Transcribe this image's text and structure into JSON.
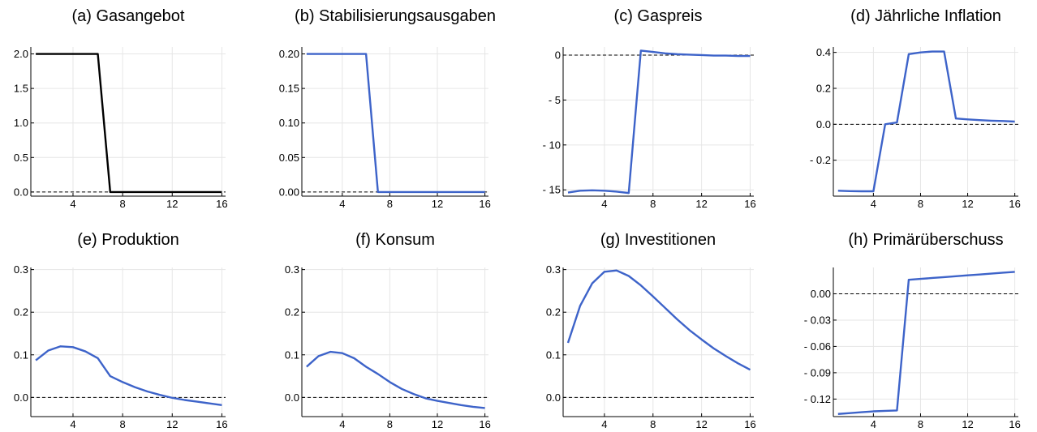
{
  "colors": {
    "series": "#3d63c9",
    "supply": "#000000",
    "grid": "#e6e6e6",
    "axis": "#000000",
    "zero_line": "#000000"
  },
  "chart_data": [
    {
      "type": "line",
      "title": "(a) Gasangebot",
      "x": [
        1,
        2,
        3,
        4,
        5,
        6,
        7,
        8,
        9,
        10,
        11,
        12,
        13,
        14,
        15,
        16
      ],
      "series": [
        {
          "values": [
            2,
            2,
            2,
            2,
            2,
            2,
            0,
            0,
            0,
            0,
            0,
            0,
            0,
            0,
            0,
            0
          ],
          "color": "#000000"
        }
      ],
      "xlim": [
        0.6,
        16.3
      ],
      "ylim": [
        -0.06,
        2.1
      ],
      "xticks": [
        4,
        8,
        12,
        16
      ],
      "xtick_labels": [
        "4",
        "8",
        "12",
        "16"
      ],
      "yticks": [
        0,
        0.5,
        1,
        1.5,
        2
      ],
      "ytick_labels": [
        "0.0",
        "0.5",
        "1.0",
        "1.5",
        "2.0"
      ],
      "grid": true,
      "zero_line": true
    },
    {
      "type": "line",
      "title": "(b) Stabilisierungsausgaben",
      "x": [
        1,
        2,
        3,
        4,
        5,
        6,
        7,
        8,
        9,
        10,
        11,
        12,
        13,
        14,
        15,
        16
      ],
      "series": [
        {
          "values": [
            0.2,
            0.2,
            0.2,
            0.2,
            0.2,
            0.2,
            0,
            0,
            0,
            0,
            0,
            0,
            0,
            0,
            0,
            0
          ],
          "color": "#3d63c9"
        }
      ],
      "xlim": [
        0.6,
        16.3
      ],
      "ylim": [
        -0.006,
        0.21
      ],
      "xticks": [
        4,
        8,
        12,
        16
      ],
      "xtick_labels": [
        "4",
        "8",
        "12",
        "16"
      ],
      "yticks": [
        0,
        0.05,
        0.1,
        0.15,
        0.2
      ],
      "ytick_labels": [
        "0.00",
        "0.05",
        "0.10",
        "0.15",
        "0.20"
      ],
      "grid": true,
      "zero_line": true
    },
    {
      "type": "line",
      "title": "(c) Gaspreis",
      "x": [
        1,
        2,
        3,
        4,
        5,
        6,
        7,
        8,
        9,
        10,
        11,
        12,
        13,
        14,
        15,
        16
      ],
      "series": [
        {
          "values": [
            -15.3,
            -15.1,
            -15.05,
            -15.1,
            -15.2,
            -15.35,
            0.5,
            0.35,
            0.2,
            0.1,
            0.05,
            0.0,
            -0.05,
            -0.05,
            -0.1,
            -0.1
          ],
          "color": "#3d63c9"
        }
      ],
      "xlim": [
        0.6,
        16.3
      ],
      "ylim": [
        -15.7,
        0.9
      ],
      "xticks": [
        4,
        8,
        12,
        16
      ],
      "xtick_labels": [
        "4",
        "8",
        "12",
        "16"
      ],
      "yticks": [
        0,
        -5,
        -10,
        -15
      ],
      "ytick_labels": [
        "0",
        "- 5",
        "- 10",
        "- 15"
      ],
      "grid": true,
      "zero_line": true
    },
    {
      "type": "line",
      "title": "(d) Jährliche Inflation",
      "x": [
        1,
        2,
        3,
        4,
        5,
        6,
        7,
        8,
        9,
        10,
        11,
        12,
        13,
        14,
        15,
        16
      ],
      "series": [
        {
          "values": [
            -0.37,
            -0.372,
            -0.373,
            -0.373,
            0.0,
            0.01,
            0.39,
            0.4,
            0.405,
            0.405,
            0.032,
            0.027,
            0.023,
            0.02,
            0.018,
            0.015
          ],
          "color": "#3d63c9"
        }
      ],
      "xlim": [
        0.6,
        16.3
      ],
      "ylim": [
        -0.4,
        0.43
      ],
      "xticks": [
        4,
        8,
        12,
        16
      ],
      "xtick_labels": [
        "4",
        "8",
        "12",
        "16"
      ],
      "yticks": [
        0.4,
        0.2,
        0,
        -0.2
      ],
      "ytick_labels": [
        "0.4",
        "0.2",
        "0.0",
        "- 0.2"
      ],
      "grid": true,
      "zero_line": true
    },
    {
      "type": "line",
      "title": "(e) Produktion",
      "x": [
        1,
        2,
        3,
        4,
        5,
        6,
        7,
        8,
        9,
        10,
        11,
        12,
        13,
        14,
        15,
        16
      ],
      "series": [
        {
          "values": [
            0.087,
            0.11,
            0.12,
            0.118,
            0.108,
            0.092,
            0.05,
            0.036,
            0.024,
            0.014,
            0.006,
            -0.001,
            -0.006,
            -0.01,
            -0.014,
            -0.018
          ],
          "color": "#3d63c9"
        }
      ],
      "xlim": [
        0.6,
        16.3
      ],
      "ylim": [
        -0.045,
        0.305
      ],
      "xticks": [
        4,
        8,
        12,
        16
      ],
      "xtick_labels": [
        "4",
        "8",
        "12",
        "16"
      ],
      "yticks": [
        0,
        0.1,
        0.2,
        0.3
      ],
      "ytick_labels": [
        "0.0",
        "0.1",
        "0.2",
        "0.3"
      ],
      "grid": true,
      "zero_line": true
    },
    {
      "type": "line",
      "title": "(f) Konsum",
      "x": [
        1,
        2,
        3,
        4,
        5,
        6,
        7,
        8,
        9,
        10,
        11,
        12,
        13,
        14,
        15,
        16
      ],
      "series": [
        {
          "values": [
            0.072,
            0.097,
            0.107,
            0.104,
            0.092,
            0.072,
            0.055,
            0.036,
            0.02,
            0.008,
            -0.002,
            -0.008,
            -0.013,
            -0.018,
            -0.022,
            -0.025
          ],
          "color": "#3d63c9"
        }
      ],
      "xlim": [
        0.6,
        16.3
      ],
      "ylim": [
        -0.045,
        0.305
      ],
      "xticks": [
        4,
        8,
        12,
        16
      ],
      "xtick_labels": [
        "4",
        "8",
        "12",
        "16"
      ],
      "yticks": [
        0,
        0.1,
        0.2,
        0.3
      ],
      "ytick_labels": [
        "0.0",
        "0.1",
        "0.2",
        "0.3"
      ],
      "grid": true,
      "zero_line": true
    },
    {
      "type": "line",
      "title": "(g) Investitionen",
      "x": [
        1,
        2,
        3,
        4,
        5,
        6,
        7,
        8,
        9,
        10,
        11,
        12,
        13,
        14,
        15,
        16
      ],
      "series": [
        {
          "values": [
            0.128,
            0.215,
            0.268,
            0.295,
            0.298,
            0.285,
            0.263,
            0.237,
            0.21,
            0.183,
            0.158,
            0.136,
            0.115,
            0.097,
            0.08,
            0.065
          ],
          "color": "#3d63c9"
        }
      ],
      "xlim": [
        0.6,
        16.3
      ],
      "ylim": [
        -0.045,
        0.305
      ],
      "xticks": [
        4,
        8,
        12,
        16
      ],
      "xtick_labels": [
        "4",
        "8",
        "12",
        "16"
      ],
      "yticks": [
        0,
        0.1,
        0.2,
        0.3
      ],
      "ytick_labels": [
        "0.0",
        "0.1",
        "0.2",
        "0.3"
      ],
      "grid": true,
      "zero_line": true
    },
    {
      "type": "line",
      "title": "(h) Primärüberschuss",
      "x": [
        1,
        2,
        3,
        4,
        5,
        6,
        7,
        8,
        9,
        10,
        11,
        12,
        13,
        14,
        15,
        16
      ],
      "series": [
        {
          "values": [
            -0.137,
            -0.136,
            -0.135,
            -0.134,
            -0.1335,
            -0.133,
            0.016,
            0.017,
            0.018,
            0.019,
            0.02,
            0.021,
            0.022,
            0.023,
            0.024,
            0.025
          ],
          "color": "#3d63c9"
        }
      ],
      "xlim": [
        0.6,
        16.3
      ],
      "ylim": [
        -0.14,
        0.03
      ],
      "xticks": [
        4,
        8,
        12,
        16
      ],
      "xtick_labels": [
        "4",
        "8",
        "12",
        "16"
      ],
      "yticks": [
        0,
        -0.03,
        -0.06,
        -0.09,
        -0.12
      ],
      "ytick_labels": [
        "0.00",
        "- 0.03",
        "- 0.06",
        "- 0.09",
        "- 0.12"
      ],
      "grid": true,
      "zero_line": true
    }
  ]
}
